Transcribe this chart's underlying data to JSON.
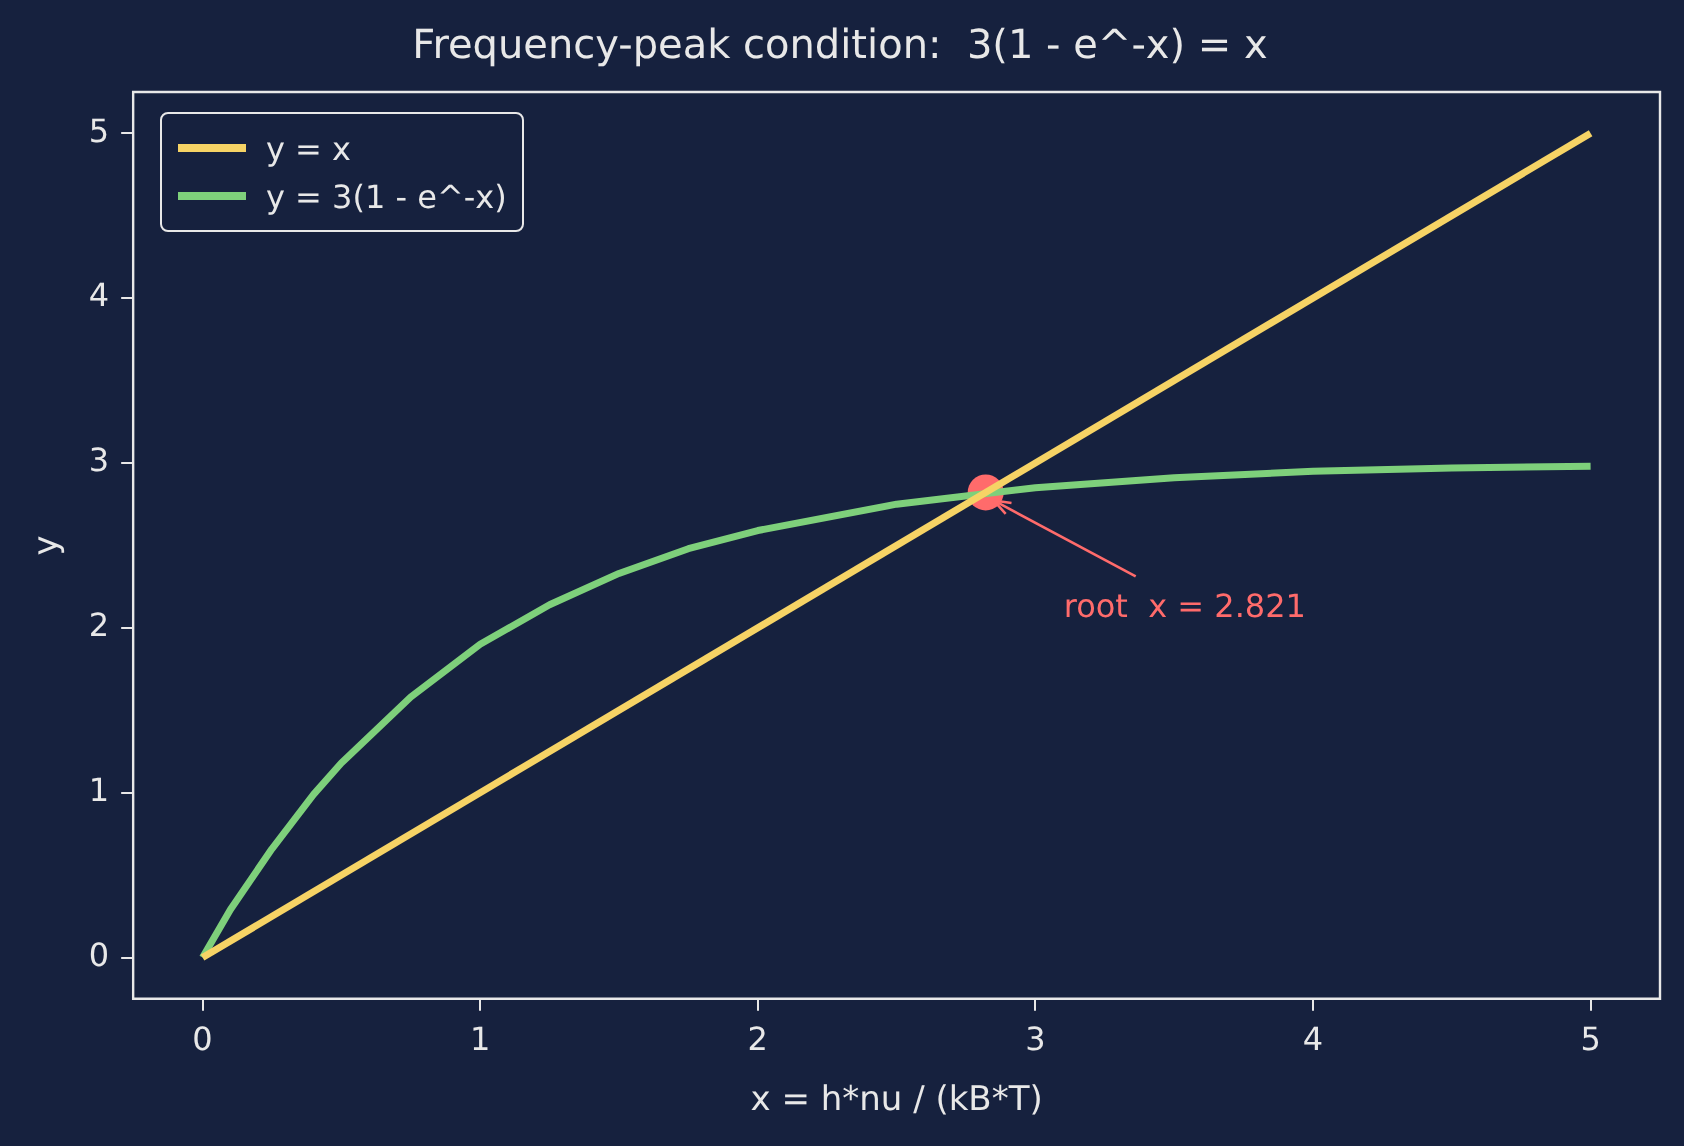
{
  "chart_data": {
    "type": "line",
    "title": "Frequency-peak condition:  3(1 - e^-x) = x",
    "xlabel": "x = h*nu / (kB*T)",
    "ylabel": "y",
    "xlim": [
      -0.25,
      5.25
    ],
    "xticks": [
      0,
      1,
      2,
      3,
      4,
      5
    ],
    "ylim": [
      -0.25,
      5.25
    ],
    "yticks": [
      0,
      1,
      2,
      3,
      4,
      5
    ],
    "grid": false,
    "legend": "top left",
    "series": [
      {
        "name": "y = x",
        "color": "#f6d365",
        "x": [
          0,
          5
        ],
        "values": [
          0,
          5
        ],
        "marker": "none"
      },
      {
        "name": "y = 3(1 - e^-x)",
        "color": "#7ed07b",
        "x": [
          0,
          0.1,
          0.25,
          0.4,
          0.5,
          0.75,
          1,
          1.25,
          1.5,
          1.75,
          2,
          2.5,
          3,
          3.5,
          4,
          4.5,
          5
        ],
        "values": [
          0,
          0.29,
          0.66,
          0.99,
          1.18,
          1.58,
          1.9,
          2.14,
          2.33,
          2.48,
          2.59,
          2.75,
          2.85,
          2.91,
          2.95,
          2.97,
          2.98
        ],
        "marker": "none"
      },
      {
        "type": "scatter",
        "color": "#ff6b6b",
        "x": [
          2.821
        ],
        "values": [
          2.821
        ],
        "marker": "circle"
      }
    ],
    "annotations": [
      {
        "text": "root  x = 2.821",
        "x": 2.821,
        "y": 2.821
      }
    ]
  }
}
